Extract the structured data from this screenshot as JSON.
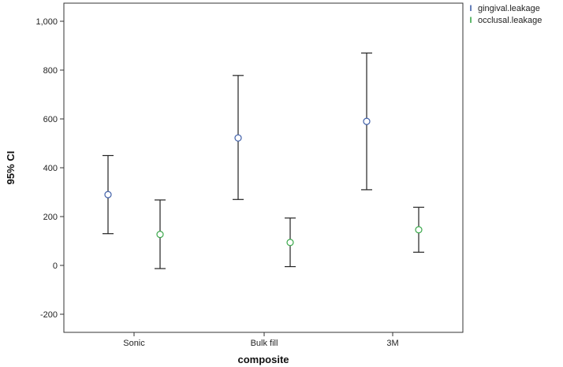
{
  "chart_data": {
    "type": "errorbar",
    "title": "",
    "xlabel": "composite",
    "ylabel": "95% CI",
    "categories": [
      "Sonic",
      "Bulk fill",
      "3M"
    ],
    "ylim": [
      -250,
      1050
    ],
    "yticks": [
      -200,
      0,
      200,
      400,
      600,
      800,
      1000
    ],
    "ytick_labels": [
      "-200",
      "0",
      "200",
      "400",
      "600",
      "800",
      "1,000"
    ],
    "grid": false,
    "legend_position": "top-right",
    "series": [
      {
        "name": "gingival.leakage",
        "color": "#3f5fa8",
        "means": [
          290,
          522,
          590
        ],
        "lower": [
          130,
          270,
          310
        ],
        "upper": [
          450,
          778,
          870
        ]
      },
      {
        "name": "occlusal.leakage",
        "color": "#3aa84a",
        "means": [
          127,
          94,
          146
        ],
        "lower": [
          -13,
          -5,
          54
        ],
        "upper": [
          268,
          194,
          238
        ]
      }
    ]
  },
  "legend": {
    "items": [
      {
        "label": "gingival.leakage",
        "glyph": "I",
        "color": "#3f5fa8"
      },
      {
        "label": "occlusal.leakage",
        "glyph": "I",
        "color": "#3aa84a"
      }
    ]
  }
}
